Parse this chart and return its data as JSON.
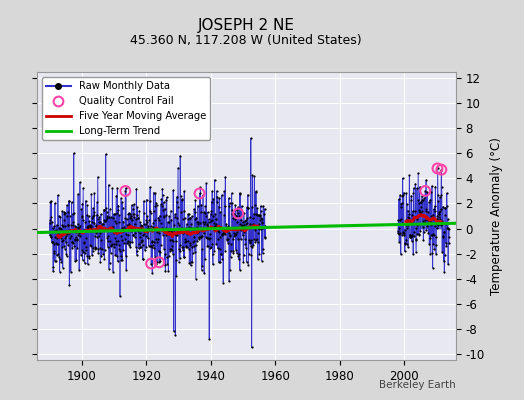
{
  "title": "JOSEPH 2 NE",
  "subtitle": "45.360 N, 117.208 W (United States)",
  "ylabel_right": "Temperature Anomaly (°C)",
  "watermark": "Berkeley Earth",
  "xlim": [
    1886,
    2016
  ],
  "ylim": [
    -10.5,
    12.5
  ],
  "yticks": [
    -10,
    -8,
    -6,
    -4,
    -2,
    0,
    2,
    4,
    6,
    8,
    10,
    12
  ],
  "xticks": [
    1900,
    1920,
    1940,
    1960,
    1980,
    2000
  ],
  "segment1_start": 1890,
  "segment1_end": 1956,
  "segment2_start": 1998,
  "segment2_end": 2013,
  "trend_x": [
    1886,
    2016
  ],
  "trend_y": [
    -0.32,
    0.42
  ],
  "raw_color": "#3333cc",
  "dot_color": "#000000",
  "qc_color": "#ff44aa",
  "moving_avg_color": "#cc0000",
  "trend_color": "#00bb00",
  "bg_color": "#d8d8d8",
  "plot_bg_color": "#e8e8f0",
  "title_fontsize": 11,
  "subtitle_fontsize": 9,
  "seed": 42
}
